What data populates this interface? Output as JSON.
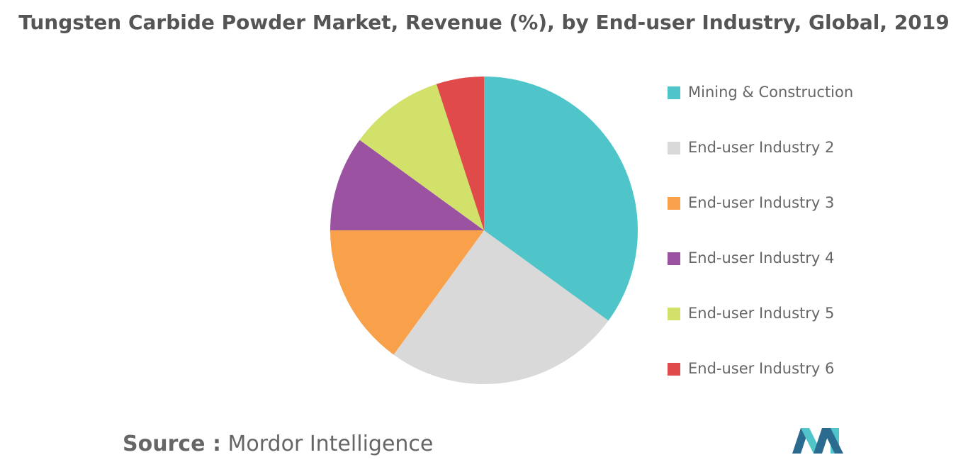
{
  "chart_data": {
    "type": "pie",
    "title": "Tungsten Carbide Powder Market, Revenue (%), by End-user Industry, Global, 2019",
    "categories": [
      "Mining & Construction",
      "End-user Industry 2",
      "End-user Industry 3",
      "End-user Industry 4",
      "End-user Industry 5",
      "End-user Industry 6"
    ],
    "values": [
      35,
      25,
      15,
      10,
      10,
      5
    ],
    "colors": [
      "#4fc4c9",
      "#d9d9d9",
      "#f9a04a",
      "#9b52a0",
      "#d2e169",
      "#e04a4a"
    ],
    "legend": "right"
  },
  "source": {
    "label": "Source :",
    "text": "Mordor Intelligence"
  }
}
